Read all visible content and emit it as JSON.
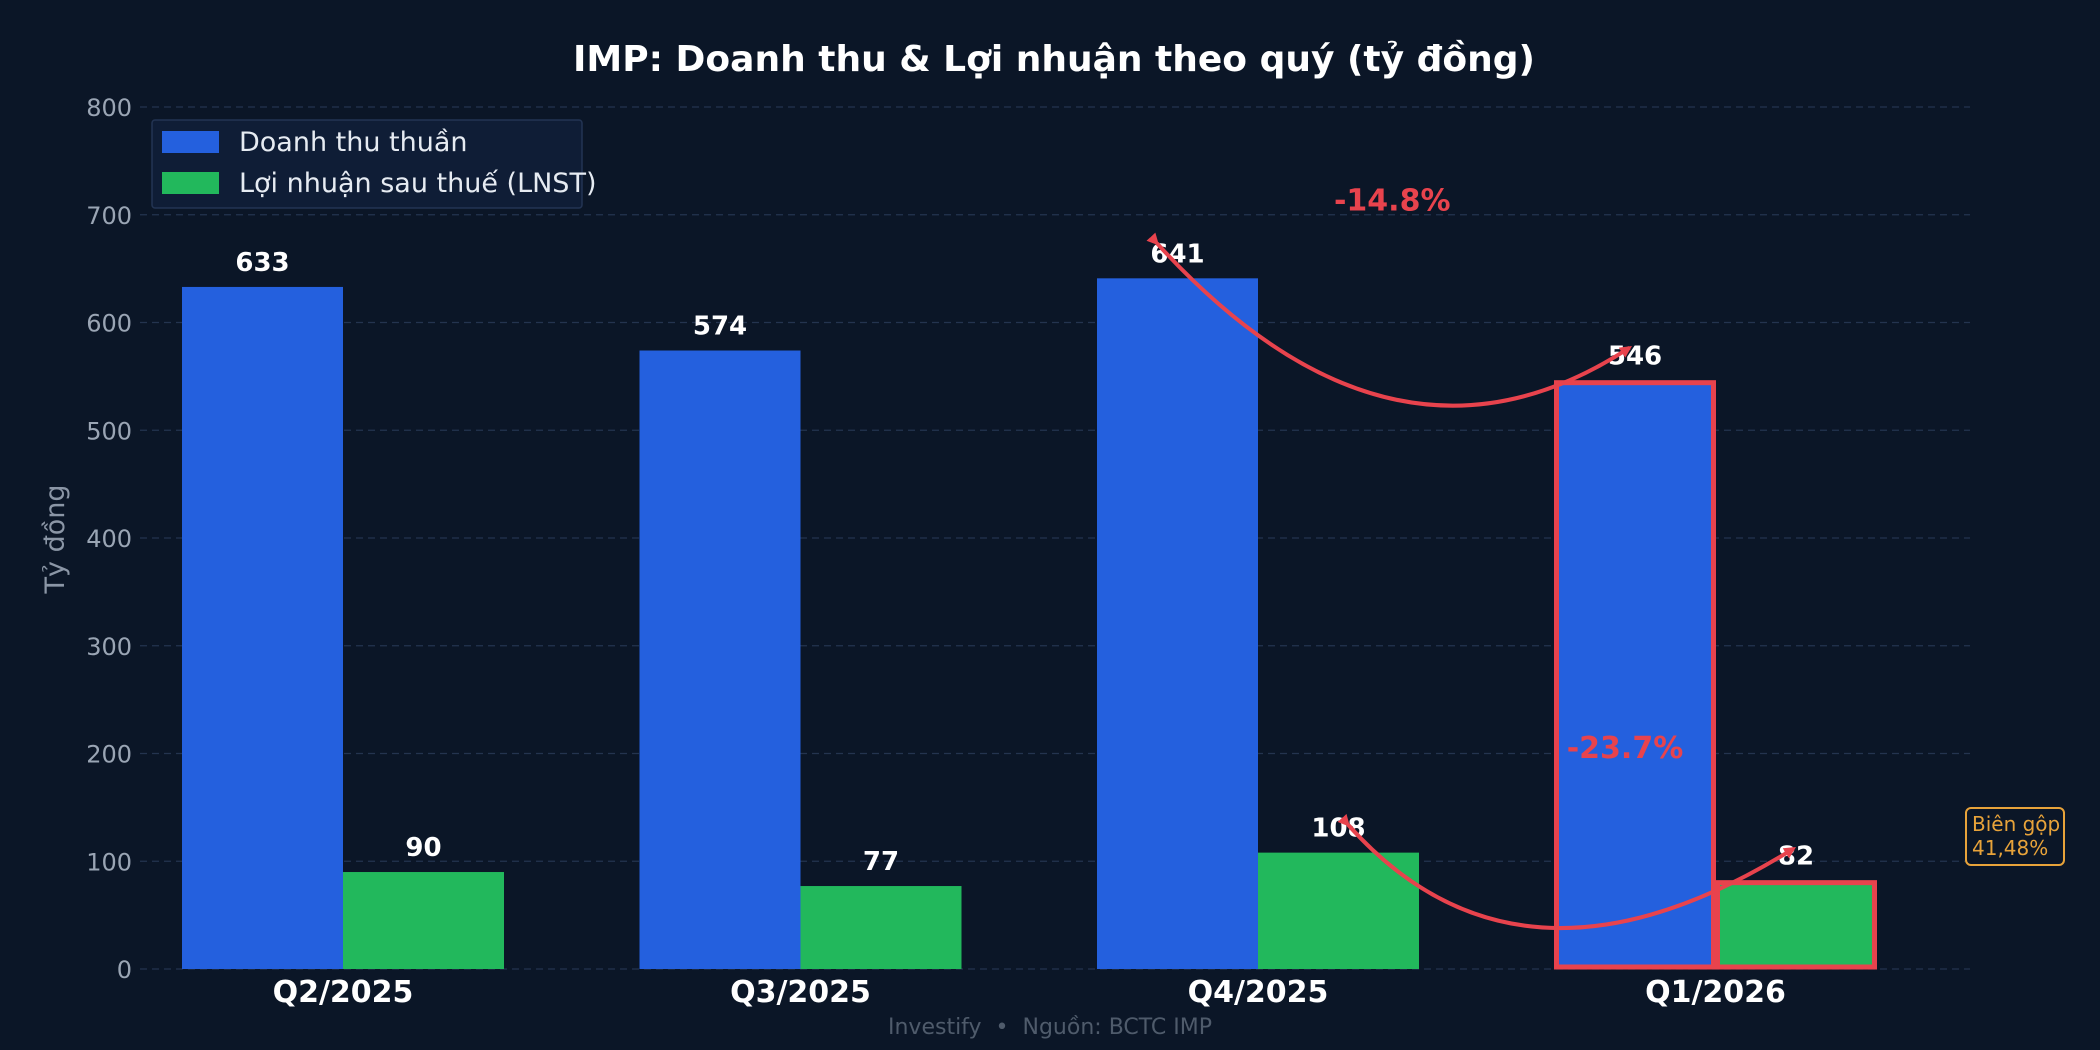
{
  "chart_data": {
    "type": "bar",
    "title": "IMP: Doanh thu & Lợi nhuận theo quý (tỷ đồng)",
    "xlabel": "",
    "ylabel": "Tỷ đồng",
    "ylim": [
      0,
      800
    ],
    "yticks": [
      0,
      100,
      200,
      300,
      400,
      500,
      600,
      700,
      800
    ],
    "grid": true,
    "legend_position": "top-left",
    "categories": [
      "Q2/2025",
      "Q3/2025",
      "Q4/2025",
      "Q1/2026"
    ],
    "series": [
      {
        "name": "Doanh thu thuần",
        "values": [
          633,
          574,
          641,
          546
        ],
        "color": "#2460de"
      },
      {
        "name": "Lợi nhuận sau thuế (LNST)",
        "values": [
          90,
          77,
          108,
          82
        ],
        "color": "#22b85c"
      }
    ],
    "highlight_category": "Q1/2026",
    "highlight_color": "#e8434d",
    "annotations": [
      {
        "series": 0,
        "from": "Q4/2025",
        "to": "Q1/2026",
        "label": "-14.8%"
      },
      {
        "series": 1,
        "from": "Q4/2025",
        "to": "Q1/2026",
        "label": "-23.7%"
      }
    ],
    "margin_note": {
      "title": "Biên gộp",
      "value": "41,48%",
      "color": "#e8a33a"
    },
    "footer": "Investify  •  Nguồn: BCTC IMP"
  }
}
